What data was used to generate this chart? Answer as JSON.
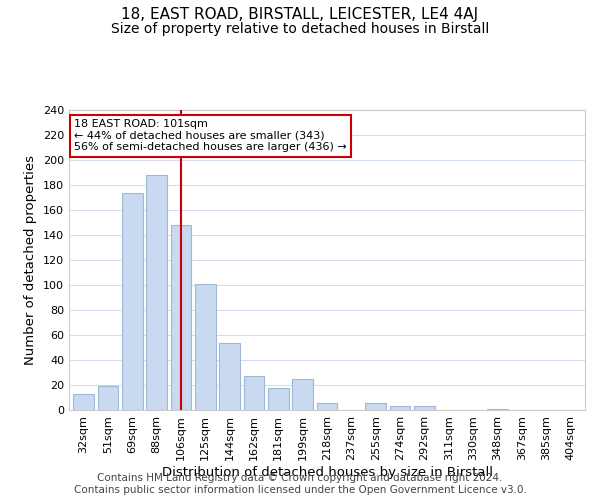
{
  "title": "18, EAST ROAD, BIRSTALL, LEICESTER, LE4 4AJ",
  "subtitle": "Size of property relative to detached houses in Birstall",
  "xlabel": "Distribution of detached houses by size in Birstall",
  "ylabel": "Number of detached properties",
  "bin_labels": [
    "32sqm",
    "51sqm",
    "69sqm",
    "88sqm",
    "106sqm",
    "125sqm",
    "144sqm",
    "162sqm",
    "181sqm",
    "199sqm",
    "218sqm",
    "237sqm",
    "255sqm",
    "274sqm",
    "292sqm",
    "311sqm",
    "330sqm",
    "348sqm",
    "367sqm",
    "385sqm",
    "404sqm"
  ],
  "bar_heights": [
    13,
    19,
    174,
    188,
    148,
    101,
    54,
    27,
    18,
    25,
    6,
    0,
    6,
    3,
    3,
    0,
    0,
    1,
    0,
    0,
    0
  ],
  "bar_color": "#c8d9f0",
  "bar_edge_color": "#a0b8d8",
  "marker_bin_index": 4,
  "marker_label": "18 EAST ROAD: 101sqm",
  "marker_line_color": "#cc0000",
  "annotation_line1": "← 44% of detached houses are smaller (343)",
  "annotation_line2": "56% of semi-detached houses are larger (436) →",
  "annotation_box_edge_color": "#cc0000",
  "ylim": [
    0,
    240
  ],
  "yticks": [
    0,
    20,
    40,
    60,
    80,
    100,
    120,
    140,
    160,
    180,
    200,
    220,
    240
  ],
  "footer_line1": "Contains HM Land Registry data © Crown copyright and database right 2024.",
  "footer_line2": "Contains public sector information licensed under the Open Government Licence v3.0.",
  "title_fontsize": 11,
  "subtitle_fontsize": 10,
  "axis_label_fontsize": 9.5,
  "tick_fontsize": 8,
  "footer_fontsize": 7.5
}
